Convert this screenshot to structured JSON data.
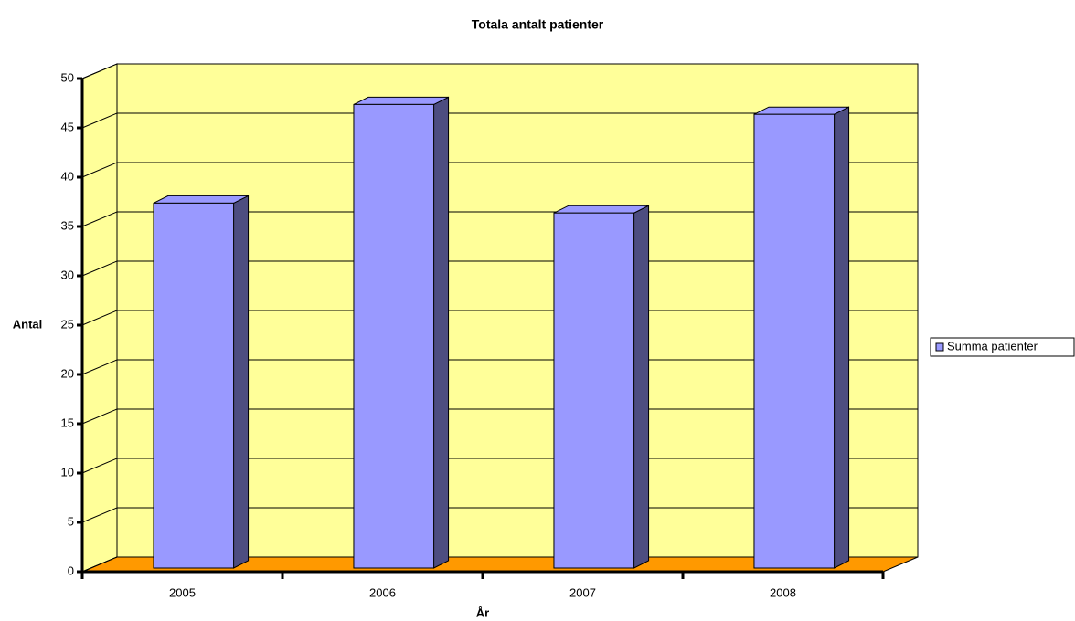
{
  "chart_data": {
    "type": "bar3d",
    "title": "Totala antalt patienter",
    "x_label": "År",
    "y_label": "Antal",
    "categories": [
      "2005",
      "2006",
      "2007",
      "2008"
    ],
    "series": [
      {
        "name": "Summa patienter",
        "color": "#9999ff",
        "values": [
          37,
          47,
          36,
          46
        ]
      }
    ],
    "ylim": [
      0,
      50
    ],
    "yticks": [
      0,
      5,
      10,
      15,
      20,
      25,
      30,
      35,
      40,
      45,
      50
    ],
    "grid": true,
    "legend": "right",
    "wall_color": "#ffff99",
    "floor_color": "#ff9900"
  }
}
